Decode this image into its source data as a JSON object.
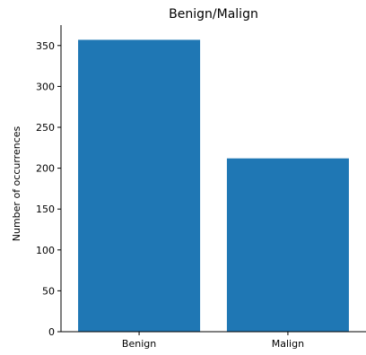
{
  "chart_data": {
    "type": "bar",
    "title": "Benign/Malign",
    "xlabel": "",
    "ylabel": "Number of occurrences",
    "categories": [
      "Benign",
      "Malign"
    ],
    "values": [
      357,
      212
    ],
    "ylim": [
      0,
      375
    ],
    "yticks": [
      0,
      50,
      100,
      150,
      200,
      250,
      300,
      350
    ],
    "grid": false,
    "colors": {
      "bar": "#1f77b4",
      "axis": "#000000"
    }
  }
}
